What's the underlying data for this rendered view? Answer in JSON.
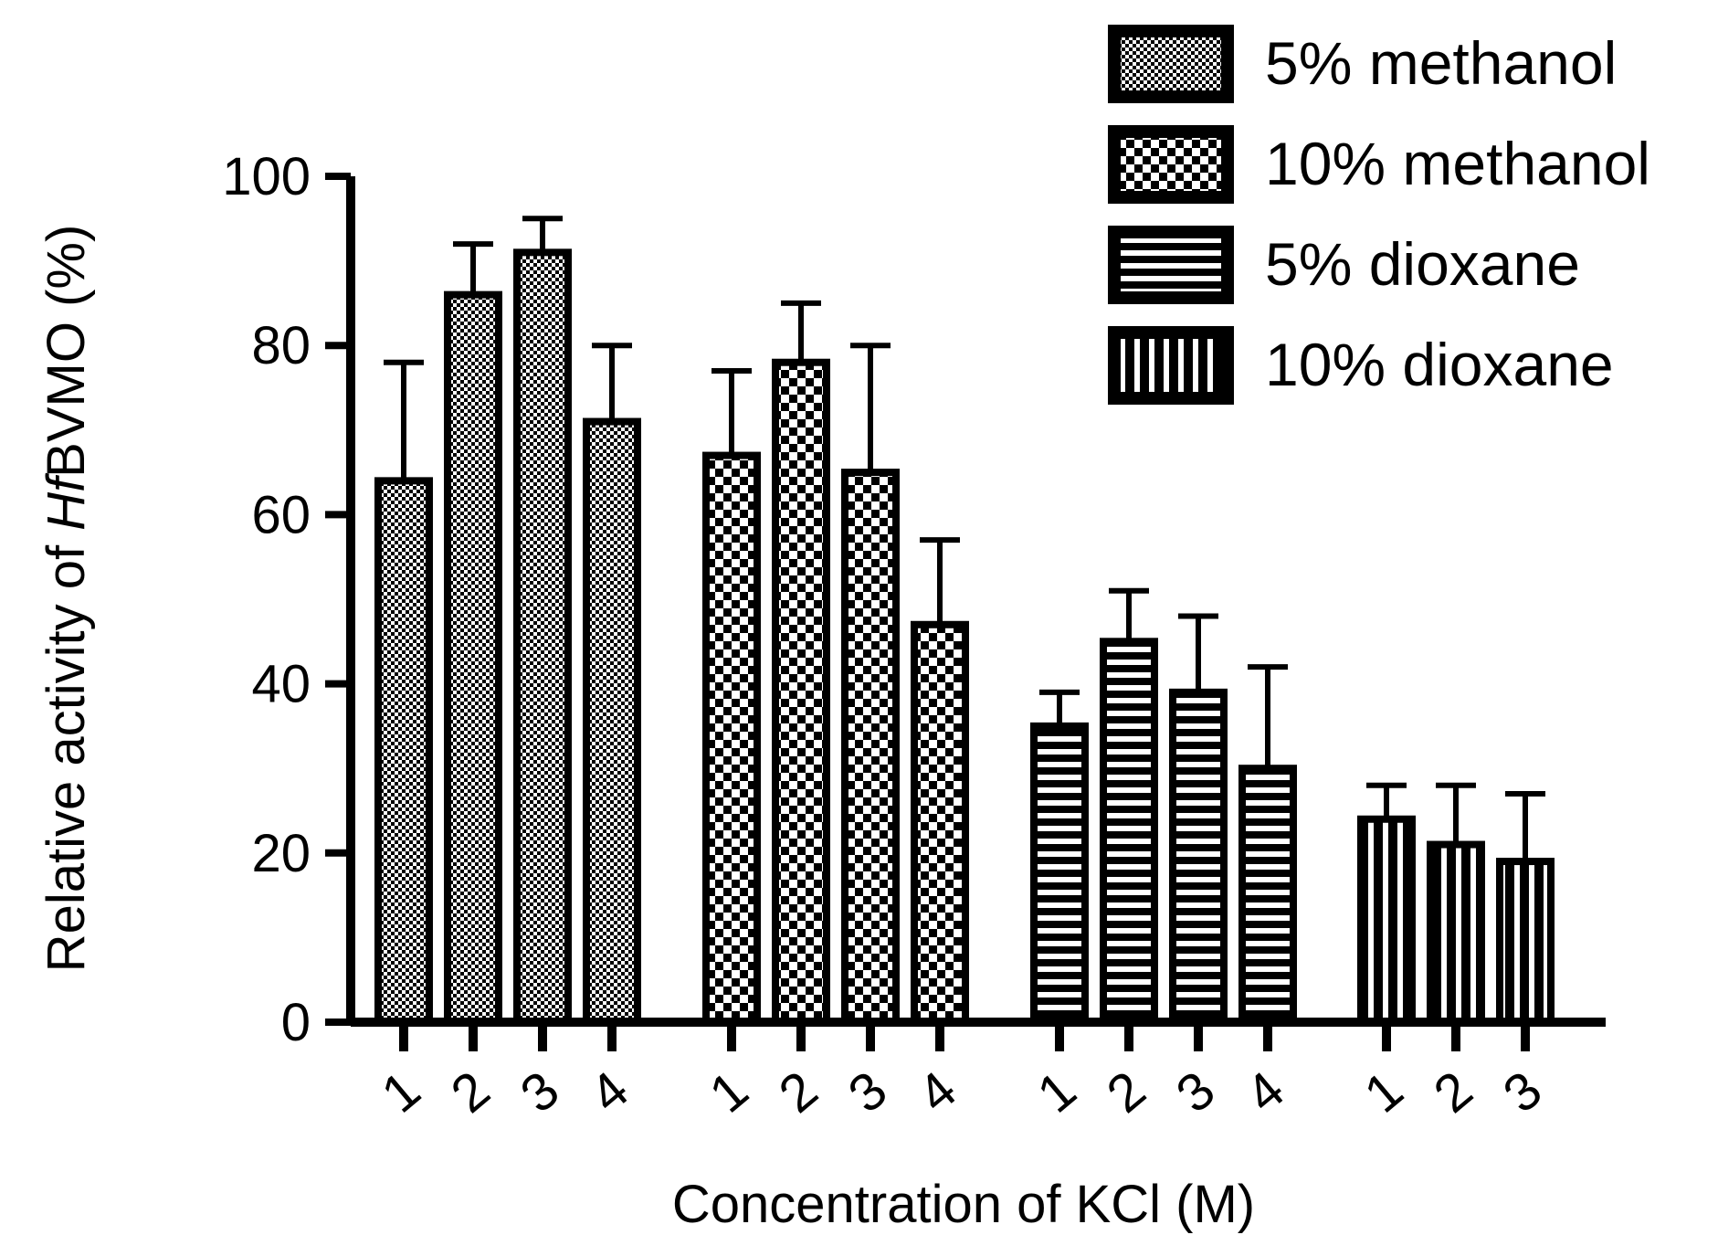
{
  "chart_data": {
    "type": "bar",
    "title": "",
    "xlabel": "Concentration of KCl (M)",
    "ylabel_prefix": "Relative activity of ",
    "ylabel_italic": "Hf",
    "ylabel_suffix": "BVMO (%)",
    "ylim": [
      0,
      100
    ],
    "yticks": [
      0,
      20,
      40,
      60,
      80,
      100
    ],
    "grid": false,
    "legend_position": "top-right",
    "series": [
      {
        "name": "5% methanol",
        "pattern": "fine-check",
        "categories": [
          "1",
          "2",
          "3",
          "4"
        ],
        "values": [
          64,
          86,
          91,
          71
        ],
        "errors": [
          14,
          6,
          4,
          9
        ]
      },
      {
        "name": "10% methanol",
        "pattern": "coarse-check",
        "categories": [
          "1",
          "2",
          "3",
          "4"
        ],
        "values": [
          67,
          78,
          65,
          47
        ],
        "errors": [
          10,
          7,
          15,
          10
        ]
      },
      {
        "name": "5% dioxane",
        "pattern": "horizontal",
        "categories": [
          "1",
          "2",
          "3",
          "4"
        ],
        "values": [
          35,
          45,
          39,
          30
        ],
        "errors": [
          4,
          6,
          9,
          12
        ]
      },
      {
        "name": "10% dioxane",
        "pattern": "vertical",
        "categories": [
          "1",
          "2",
          "3"
        ],
        "values": [
          24,
          21,
          19
        ],
        "errors": [
          4,
          7,
          8
        ]
      }
    ]
  }
}
